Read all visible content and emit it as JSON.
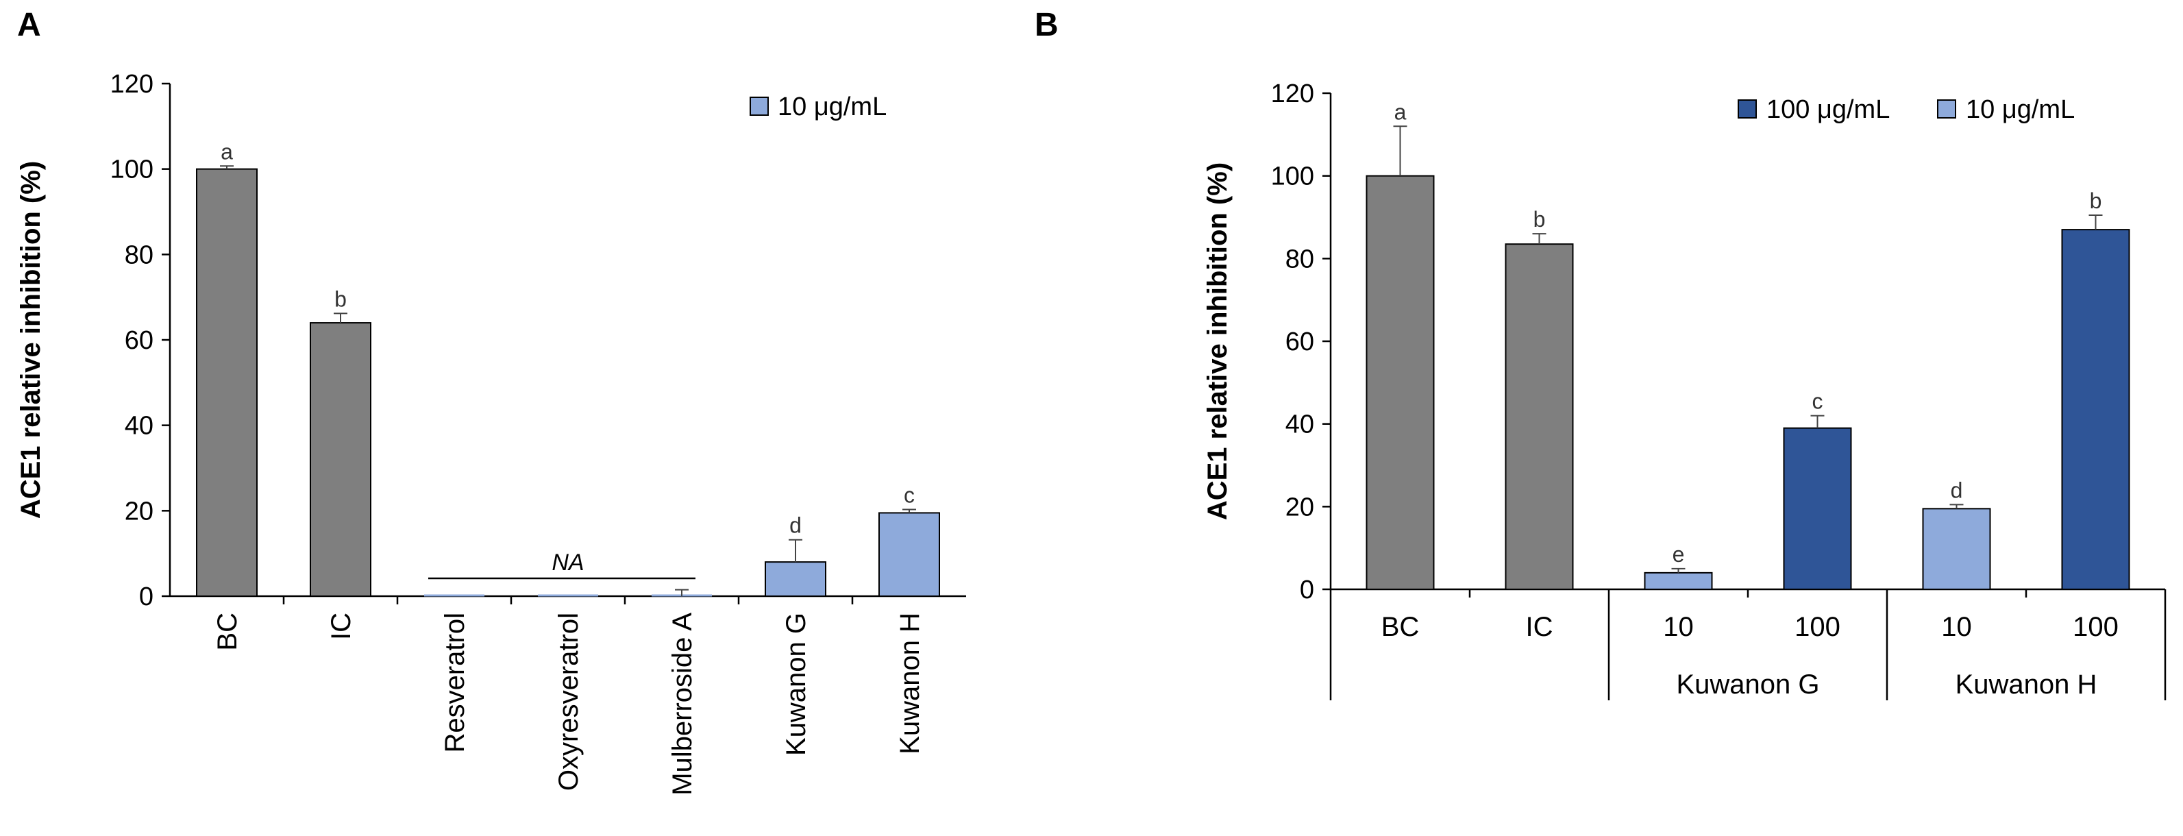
{
  "chart_data": [
    {
      "panel": "A",
      "type": "bar",
      "ylabel": "ACE1 relative inhibition (%)",
      "ylim": [
        0,
        120
      ],
      "yticks": [
        0,
        20,
        40,
        60,
        80,
        100,
        120
      ],
      "legend": [
        {
          "label": "10 μg/mL",
          "color": "#8eaadb"
        }
      ],
      "categories": [
        "BC",
        "IC",
        "Resveratrol",
        "Oxyresveratrol",
        "Mulberroside A",
        "Kuwanon G",
        "Kuwanon H"
      ],
      "values": [
        100,
        64,
        0,
        0,
        0,
        8,
        19.5
      ],
      "errors": [
        0.7,
        2.2,
        0,
        0,
        1.5,
        5.2,
        0.8
      ],
      "colors": [
        "#7f7f7f",
        "#7f7f7f",
        "#8eaadb",
        "#8eaadb",
        "#8eaadb",
        "#8eaadb",
        "#8eaadb"
      ],
      "letters": [
        "a",
        "b",
        "",
        "",
        "",
        "d",
        "c"
      ],
      "annotation": "NA"
    },
    {
      "panel": "B",
      "type": "bar",
      "ylabel": "ACE1 relative inhibition (%)",
      "ylim": [
        0,
        120
      ],
      "yticks": [
        0,
        20,
        40,
        60,
        80,
        100,
        120
      ],
      "legend": [
        {
          "label": "100 μg/mL",
          "color": "#2f5597"
        },
        {
          "label": "10 μg/mL",
          "color": "#8eaadb"
        }
      ],
      "categories": [
        "BC",
        "IC",
        "10",
        "100",
        "10",
        "100"
      ],
      "groups": [
        {
          "label": "Kuwanon G",
          "span": [
            2,
            3
          ]
        },
        {
          "label": "Kuwanon H",
          "span": [
            4,
            5
          ]
        }
      ],
      "values": [
        100,
        83.5,
        4,
        39,
        19.5,
        87
      ],
      "errors": [
        12,
        2.5,
        1,
        3,
        1,
        3.5
      ],
      "colors": [
        "#7f7f7f",
        "#7f7f7f",
        "#8eaadb",
        "#2f5597",
        "#8eaadb",
        "#2f5597"
      ],
      "letters": [
        "a",
        "b",
        "e",
        "c",
        "d",
        "b"
      ]
    }
  ]
}
